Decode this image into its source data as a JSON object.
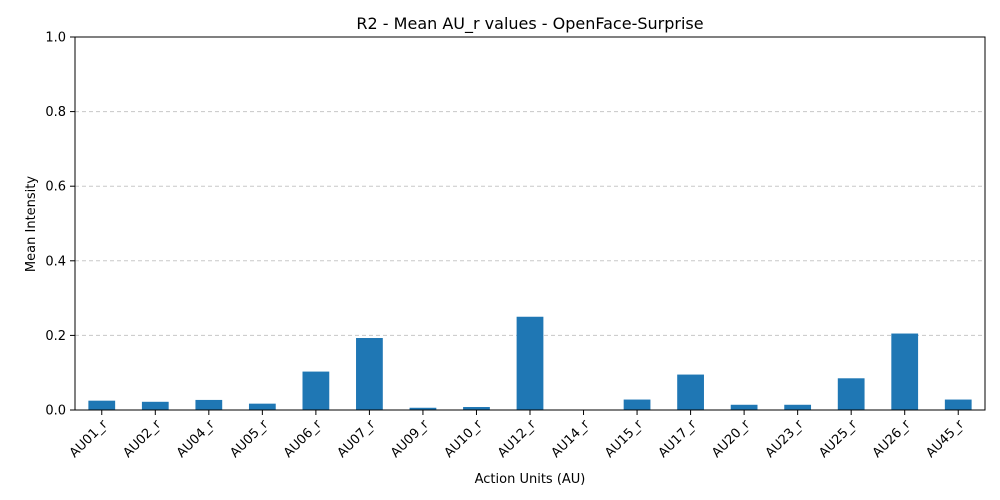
{
  "chart_data": {
    "type": "bar",
    "title": "R2 - Mean AU_r values - OpenFace-Surprise",
    "xlabel": "Action Units (AU)",
    "ylabel": "Mean Intensity",
    "ylim": [
      0,
      1.0
    ],
    "yticks": [
      "0.0",
      "0.2",
      "0.4",
      "0.6",
      "0.8",
      "1.0"
    ],
    "grid": "y-dashed",
    "bar_color": "#1f77b4",
    "grid_color": "#c8c8c8",
    "categories": [
      "AU01_r",
      "AU02_r",
      "AU04_r",
      "AU05_r",
      "AU06_r",
      "AU07_r",
      "AU09_r",
      "AU10_r",
      "AU12_r",
      "AU14_r",
      "AU15_r",
      "AU17_r",
      "AU20_r",
      "AU23_r",
      "AU25_r",
      "AU26_r",
      "AU45_r"
    ],
    "values": [
      0.025,
      0.022,
      0.027,
      0.017,
      0.103,
      0.193,
      0.006,
      0.008,
      0.25,
      0.0,
      0.028,
      0.095,
      0.014,
      0.014,
      0.085,
      0.205,
      0.028
    ]
  }
}
